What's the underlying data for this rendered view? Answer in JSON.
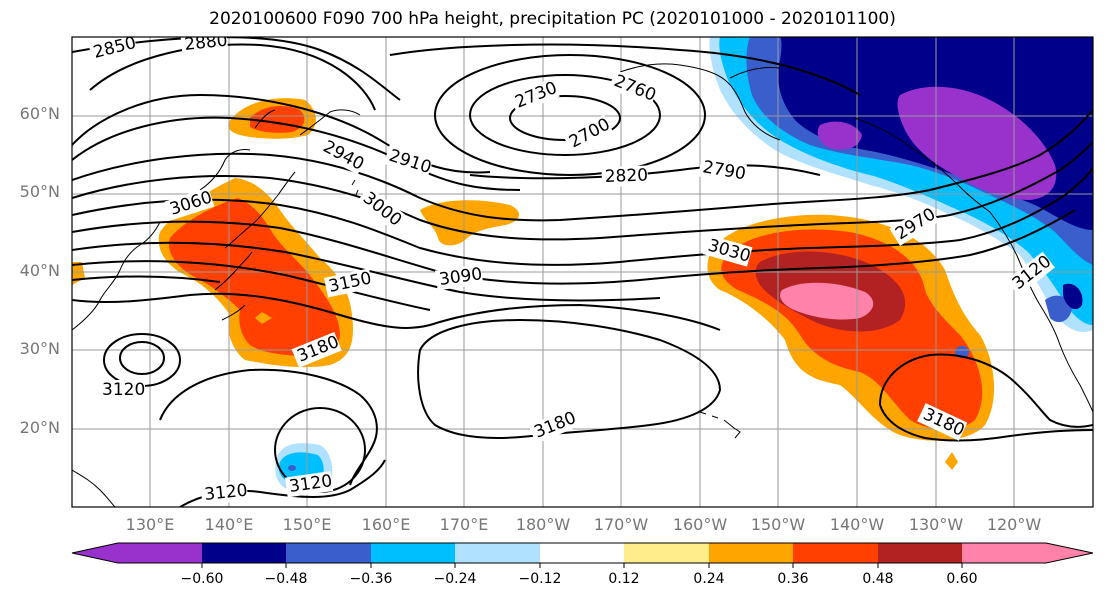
{
  "title": "2020100600 F090 700 hPa height, precipitation PC (2020101000 - 2020101100)",
  "lat_labels": [
    "60°N",
    "50°N",
    "40°N",
    "30°N",
    "20°N"
  ],
  "lon_labels": [
    "130°E",
    "140°E",
    "150°E",
    "160°E",
    "170°E",
    "180°W",
    "170°W",
    "160°W",
    "150°W",
    "140°W",
    "130°W",
    "120°W"
  ],
  "colorbar": {
    "colors": [
      "#9932cc",
      "#00008b",
      "#3a5fcd",
      "#00bfff",
      "#b0e2ff",
      "#ffffff",
      "#ffec8b",
      "#ffa500",
      "#ff4000",
      "#b22222",
      "#ff82ab"
    ],
    "ticks": [
      "−0.60",
      "−0.48",
      "−0.36",
      "−0.24",
      "−0.12",
      "0.12",
      "0.24",
      "0.36",
      "0.48",
      "0.60"
    ]
  },
  "contour_labels": [
    "2850",
    "2880",
    "2940",
    "2910",
    "3000",
    "3060",
    "2730",
    "2760",
    "2700",
    "2790",
    "2820",
    "3030",
    "2970",
    "3090",
    "3150",
    "3120",
    "3180",
    "3120",
    "3120",
    "3180",
    "3180",
    "3120"
  ]
}
